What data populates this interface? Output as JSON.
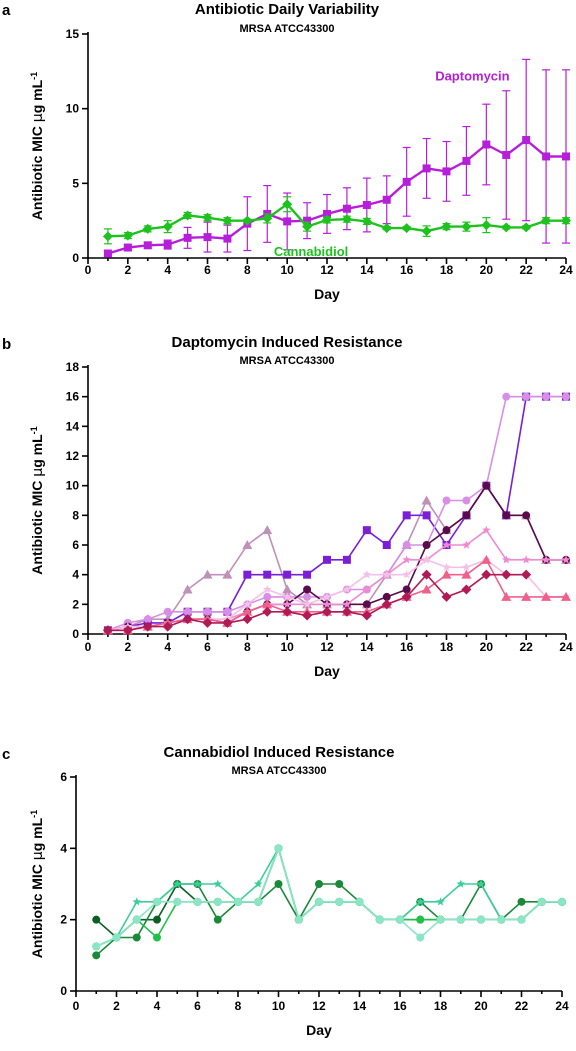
{
  "chart_data": [
    {
      "panel": "a",
      "type": "line",
      "title": "Antibiotic Daily Variability",
      "subtitle": "MRSA ATCC43300",
      "xlabel": "Day",
      "ylabel": "Antibiotic MIC µg mL-1",
      "ylabel_main": "Antibiotic MIC ",
      "ylabel_mu": "µ",
      "ylabel_unit": "g mL",
      "ylabel_sup": "-1",
      "xlim": [
        0,
        24
      ],
      "ylim": [
        0,
        15
      ],
      "xticks": [
        "0",
        "2",
        "4",
        "6",
        "8",
        "10",
        "12",
        "14",
        "16",
        "18",
        "20",
        "22",
        "24"
      ],
      "yticks": [
        "0",
        "5",
        "10",
        "15"
      ],
      "series": [
        {
          "name": "Daptomycin",
          "color": "#b61fd9",
          "marker": "square",
          "x": [
            1,
            2,
            3,
            4,
            5,
            6,
            7,
            8,
            9,
            10,
            11,
            12,
            13,
            14,
            15,
            16,
            17,
            18,
            19,
            20,
            21,
            22,
            23,
            24
          ],
          "y": [
            0.3,
            0.7,
            0.85,
            0.9,
            1.35,
            1.4,
            1.3,
            2.3,
            2.95,
            2.45,
            2.5,
            2.95,
            3.3,
            3.55,
            3.9,
            5.1,
            6.0,
            5.8,
            6.5,
            7.6,
            6.9,
            7.9,
            6.8,
            6.8
          ],
          "err": [
            0.1,
            0.2,
            0.2,
            0.3,
            0.7,
            1.0,
            0.9,
            1.8,
            1.9,
            1.9,
            1.2,
            1.3,
            1.4,
            1.8,
            1.6,
            2.3,
            2.0,
            2.0,
            2.3,
            2.7,
            4.3,
            5.4,
            5.8,
            5.8
          ]
        },
        {
          "name": "Cannabidiol",
          "color": "#1ec21e",
          "marker": "diamond",
          "x": [
            1,
            2,
            3,
            4,
            5,
            6,
            7,
            8,
            9,
            10,
            11,
            12,
            13,
            14,
            15,
            16,
            17,
            18,
            19,
            20,
            21,
            22,
            23,
            24
          ],
          "y": [
            1.45,
            1.5,
            1.95,
            2.1,
            2.85,
            2.7,
            2.5,
            2.5,
            2.65,
            3.6,
            2.1,
            2.55,
            2.6,
            2.45,
            2.0,
            2.0,
            1.8,
            2.1,
            2.1,
            2.2,
            2.05,
            2.05,
            2.5,
            2.5
          ],
          "err": [
            0.5,
            0.2,
            0.2,
            0.4,
            0.2,
            0.2,
            0.2,
            0.1,
            0.3,
            0.5,
            0.3,
            0.2,
            0.2,
            0.2,
            0.1,
            0.1,
            0.35,
            0.2,
            0.3,
            0.5,
            0.1,
            0.1,
            0.2,
            0.2
          ]
        }
      ],
      "annotations": [
        {
          "text": "Daptomycin",
          "x": 19.3,
          "y": 11.9,
          "color": "#b61fd9"
        },
        {
          "text": "Cannabidiol",
          "x": 11.2,
          "y": 0.15,
          "color": "#1ec21e"
        }
      ]
    },
    {
      "panel": "b",
      "type": "line",
      "title": "Daptomycin Induced Resistance",
      "subtitle": "MRSA ATCC43300",
      "xlabel": "Day",
      "ylabel": "Antibiotic MIC µg mL-1",
      "ylabel_main": "Antibiotic MIC ",
      "ylabel_mu": "µ",
      "ylabel_unit": "g mL",
      "ylabel_sup": "-1",
      "xlim": [
        0,
        24
      ],
      "ylim": [
        0,
        18
      ],
      "xticks": [
        "0",
        "2",
        "4",
        "6",
        "8",
        "10",
        "12",
        "14",
        "16",
        "18",
        "20",
        "22",
        "24"
      ],
      "yticks": [
        "0",
        "2",
        "4",
        "6",
        "8",
        "10",
        "12",
        "14",
        "16",
        "18"
      ],
      "series": [
        {
          "color": "#c090b8",
          "marker": "triangle",
          "x": [
            1,
            2,
            3,
            4,
            5,
            6,
            7,
            8,
            9,
            10,
            11,
            12,
            13,
            14,
            15,
            16,
            17,
            18,
            19,
            20,
            21,
            22,
            23,
            24
          ],
          "y": [
            0.25,
            0.5,
            1,
            1,
            3,
            4,
            4,
            6,
            7,
            3,
            2,
            2,
            2,
            2,
            4,
            6,
            9,
            7,
            8,
            10,
            8,
            8,
            5,
            5
          ]
        },
        {
          "color": "#7a1fd6",
          "marker": "square",
          "x": [
            1,
            2,
            3,
            4,
            5,
            6,
            7,
            8,
            9,
            10,
            11,
            12,
            13,
            14,
            15,
            16,
            17,
            18,
            19,
            20,
            21,
            22,
            23,
            24
          ],
          "y": [
            0.25,
            0.5,
            0.75,
            0.75,
            1.5,
            1.5,
            1.5,
            4,
            4,
            4,
            4,
            5,
            5,
            7,
            6,
            8,
            8,
            6,
            8,
            10,
            8,
            16,
            16,
            16
          ]
        },
        {
          "color": "#d98ee6",
          "marker": "circle",
          "x": [
            1,
            2,
            3,
            4,
            5,
            6,
            7,
            8,
            9,
            10,
            11,
            12,
            13,
            14,
            15,
            16,
            17,
            18,
            19,
            20,
            21,
            22,
            23,
            24
          ],
          "y": [
            0.25,
            0.75,
            1,
            1.5,
            1.5,
            1.5,
            1.5,
            2,
            2.5,
            2.5,
            2.5,
            2.5,
            3,
            3,
            4,
            6,
            6,
            9,
            9,
            10,
            16,
            16,
            16,
            16
          ]
        },
        {
          "color": "#5a0b4a",
          "marker": "circle",
          "x": [
            1,
            2,
            3,
            4,
            5,
            6,
            7,
            8,
            9,
            10,
            11,
            12,
            13,
            14,
            15,
            16,
            17,
            18,
            19,
            20,
            21,
            22,
            23,
            24
          ],
          "y": [
            0.25,
            0.5,
            0.5,
            0.75,
            1,
            1,
            0.75,
            1.5,
            2,
            2,
            3,
            2,
            2,
            2,
            2.5,
            3,
            6,
            7,
            8,
            10,
            8,
            8,
            5,
            5
          ]
        },
        {
          "color": "#f08ad0",
          "marker": "star",
          "x": [
            1,
            2,
            3,
            4,
            5,
            6,
            7,
            8,
            9,
            10,
            11,
            12,
            13,
            14,
            15,
            16,
            17,
            18,
            19,
            20,
            21,
            22,
            23,
            24
          ],
          "y": [
            0.25,
            0.5,
            0.5,
            0.75,
            1,
            1,
            1,
            1.5,
            2,
            2,
            2,
            2,
            2,
            3,
            4,
            5,
            5,
            6,
            6,
            7,
            5,
            5,
            5,
            5
          ]
        },
        {
          "color": "#f4c0e8",
          "marker": "star",
          "x": [
            1,
            2,
            3,
            4,
            5,
            6,
            7,
            8,
            9,
            10,
            11,
            12,
            13,
            14,
            15,
            16,
            17,
            18,
            19,
            20,
            21,
            22,
            23,
            24
          ],
          "y": [
            0.25,
            0.5,
            0.5,
            0.75,
            1,
            1,
            1,
            2,
            3,
            2.5,
            2,
            2.5,
            3,
            4,
            4,
            4,
            5,
            4.5,
            4.5,
            5,
            4,
            4,
            2.5,
            2.5
          ]
        },
        {
          "color": "#f0608a",
          "marker": "triangle",
          "x": [
            1,
            2,
            3,
            4,
            5,
            6,
            7,
            8,
            9,
            10,
            11,
            12,
            13,
            14,
            15,
            16,
            17,
            18,
            19,
            20,
            21,
            22,
            23,
            24
          ],
          "y": [
            0.25,
            0.25,
            0.5,
            0.75,
            1,
            1,
            0.75,
            1.5,
            2,
            1.5,
            1.5,
            1.5,
            1.5,
            1.5,
            2,
            2.5,
            3,
            4,
            4,
            5,
            2.5,
            2.5,
            2.5,
            2.5
          ]
        },
        {
          "color": "#b01a55",
          "marker": "diamond",
          "x": [
            1,
            2,
            3,
            4,
            5,
            6,
            7,
            8,
            9,
            10,
            11,
            12,
            13,
            14,
            15,
            16,
            17,
            18,
            19,
            20,
            21,
            22
          ],
          "y": [
            0.25,
            0.25,
            0.5,
            0.5,
            1,
            0.75,
            0.75,
            1,
            1.5,
            1.5,
            1.25,
            1.5,
            1.5,
            1.25,
            2,
            2.5,
            4,
            2.5,
            3,
            4,
            4,
            4
          ]
        }
      ]
    },
    {
      "panel": "c",
      "type": "line",
      "title": "Cannabidiol Induced Resistance",
      "subtitle": "MRSA ATCC43300",
      "xlabel": "Day",
      "ylabel": "Antibiotic MIC µg mL-1",
      "ylabel_main": "Antibiotic MIC ",
      "ylabel_mu": "µ",
      "ylabel_unit": "g mL",
      "ylabel_sup": "-1",
      "xlim": [
        0,
        24
      ],
      "ylim": [
        0,
        6
      ],
      "xticks": [
        "0",
        "2",
        "4",
        "6",
        "8",
        "10",
        "12",
        "14",
        "16",
        "18",
        "20",
        "22",
        "24"
      ],
      "yticks": [
        "0",
        "2",
        "4",
        "6"
      ],
      "series": [
        {
          "color": "#0b5e24",
          "marker": "circle",
          "x": [
            1,
            2,
            3,
            4,
            5,
            6,
            7,
            8,
            9,
            10,
            11,
            12,
            13,
            14,
            15,
            16,
            17,
            18,
            19,
            20,
            21,
            22,
            23,
            24
          ],
          "y": [
            2,
            1.5,
            2,
            2,
            3,
            2.5,
            2.5,
            2.5,
            2.5,
            4,
            2,
            2.5,
            2.5,
            2.5,
            2,
            2,
            2,
            2,
            2,
            2,
            2,
            2,
            2.5,
            2.5
          ]
        },
        {
          "color": "#1a8a3a",
          "marker": "circle",
          "x": [
            1,
            2,
            3,
            4,
            5,
            6,
            7,
            8,
            9,
            10,
            11,
            12,
            13,
            14,
            15,
            16,
            17,
            18,
            19,
            20,
            21,
            22,
            23,
            24
          ],
          "y": [
            1,
            1.5,
            1.5,
            2.5,
            3,
            3,
            2,
            2.5,
            2.5,
            3,
            2,
            3,
            3,
            2.5,
            2,
            2,
            2.5,
            2,
            2,
            3,
            2,
            2.5,
            2.5,
            2.5
          ]
        },
        {
          "color": "#3dcf9a",
          "marker": "star",
          "x": [
            1,
            2,
            3,
            4,
            5,
            6,
            7,
            8,
            9,
            10,
            11,
            12,
            13,
            14,
            15,
            16,
            17,
            18,
            19,
            20,
            21,
            22,
            23,
            24
          ],
          "y": [
            1.25,
            1.5,
            2.5,
            2.5,
            3,
            3,
            3,
            2.5,
            3,
            4,
            2,
            2.5,
            2.5,
            2.5,
            2,
            2,
            2.5,
            2.5,
            3,
            3,
            2,
            2,
            2.5,
            2.5
          ]
        },
        {
          "color": "#22c04a",
          "marker": "circle",
          "x": [
            1,
            2,
            3,
            4,
            5,
            6,
            7,
            8,
            9,
            10,
            11,
            12,
            13,
            14,
            15,
            16,
            17,
            18,
            19,
            20,
            21,
            22,
            23,
            24
          ],
          "y": [
            1.25,
            1.5,
            2,
            1.5,
            2.5,
            2.5,
            2.5,
            2.5,
            2.5,
            4,
            2,
            2.5,
            2.5,
            2.5,
            2,
            2,
            2,
            2,
            2,
            2,
            2,
            2,
            2.5,
            2.5
          ]
        },
        {
          "color": "#8ae6c6",
          "marker": "circle",
          "x": [
            1,
            2,
            3,
            4,
            5,
            6,
            7,
            8,
            9,
            10,
            11,
            12,
            13,
            14,
            15,
            16,
            17,
            18,
            19,
            20,
            21,
            22,
            23,
            24
          ],
          "y": [
            1.25,
            1.5,
            2,
            2.5,
            2.5,
            2.5,
            2.5,
            2.5,
            2.5,
            4,
            2,
            2.5,
            2.5,
            2.5,
            2,
            2,
            1.5,
            2,
            2,
            2,
            2,
            2,
            2.5,
            2.5
          ]
        }
      ]
    }
  ]
}
